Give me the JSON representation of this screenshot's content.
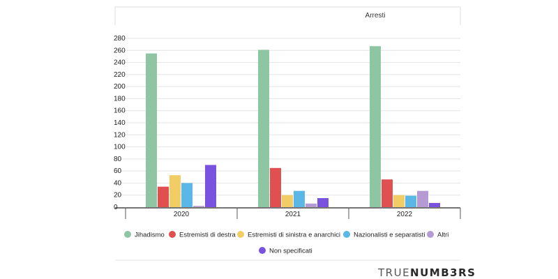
{
  "brand": {
    "part1": "TRUE",
    "part2": "NUMB3RS"
  },
  "colors": {
    "Jihadismo": "#8ec5a3",
    "Estremisti di destra": "#e05050",
    "Estremisti di sinistra e anarchici": "#f2cd65",
    "Nazionalisti e separatisti": "#5ab7e6",
    "Altri": "#b59ad4",
    "Non specificati": "#7a52e0"
  },
  "chart_data": {
    "type": "bar",
    "title": "Arresti",
    "categories": [
      "2020",
      "2021",
      "2022"
    ],
    "series": [
      {
        "name": "Jihadismo",
        "values": [
          255,
          261,
          267
        ]
      },
      {
        "name": "Estremisti di destra",
        "values": [
          34,
          65,
          46
        ]
      },
      {
        "name": "Estremisti di sinistra e anarchici",
        "values": [
          53,
          20,
          20
        ]
      },
      {
        "name": "Nazionalisti e separatisti",
        "values": [
          40,
          27,
          19
        ]
      },
      {
        "name": "Altri",
        "values": [
          2,
          6,
          27
        ]
      },
      {
        "name": "Non specificati",
        "values": [
          70,
          15,
          7
        ]
      }
    ],
    "yticks": [
      0,
      20,
      40,
      60,
      80,
      100,
      120,
      140,
      160,
      180,
      200,
      220,
      240,
      260,
      280
    ],
    "ylim": [
      0,
      280
    ],
    "grid": true,
    "legend_position": "bottom"
  }
}
